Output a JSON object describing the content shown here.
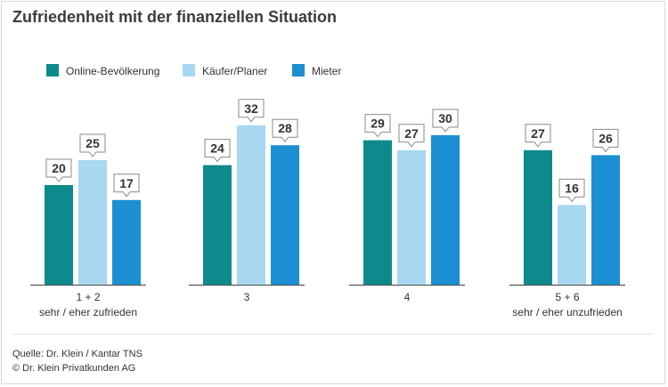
{
  "title": "Zufriedenheit mit der finanziellen Situation",
  "footer": {
    "source": "Quelle: Dr. Klein / Kantar TNS",
    "copyright": "© Dr. Klein Privatkunden AG"
  },
  "colors": {
    "series": [
      "#0e8a8c",
      "#a8d8ef",
      "#1b8fd2"
    ],
    "axis": "#555555",
    "callout_border": "#8a8a8a"
  },
  "chart_data": {
    "type": "bar",
    "title": "Zufriedenheit mit der finanziellen Situation",
    "categories": [
      [
        "1 + 2",
        "sehr / eher zufrieden"
      ],
      [
        "3"
      ],
      [
        "4"
      ],
      [
        "5 + 6",
        "sehr / eher unzufrieden"
      ]
    ],
    "series": [
      {
        "name": "Online-Bevölkerung",
        "values": [
          20,
          24,
          29,
          27
        ]
      },
      {
        "name": "Käufer/Planer",
        "values": [
          25,
          32,
          27,
          16
        ]
      },
      {
        "name": "Mieter",
        "values": [
          17,
          28,
          30,
          26
        ]
      }
    ],
    "ylim": [
      0,
      35
    ],
    "grid": false,
    "legend": "top-left",
    "data_labels": true
  }
}
